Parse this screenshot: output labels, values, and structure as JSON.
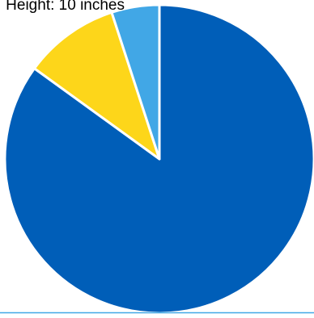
{
  "chart_data": {
    "type": "pie",
    "header_text": "Height: 10 inches",
    "slices": [
      {
        "label": "",
        "value": 85,
        "color": "#005eb8"
      },
      {
        "label": "",
        "value": 10,
        "color": "#fdd61a"
      },
      {
        "label": "",
        "value": 5,
        "color": "#41a7e6"
      }
    ],
    "start_angle_deg": 0,
    "direction": "clockwise",
    "legend": "none",
    "slice_border_color": "#ffffff",
    "bottom_rule_color": "#41a7e6"
  }
}
